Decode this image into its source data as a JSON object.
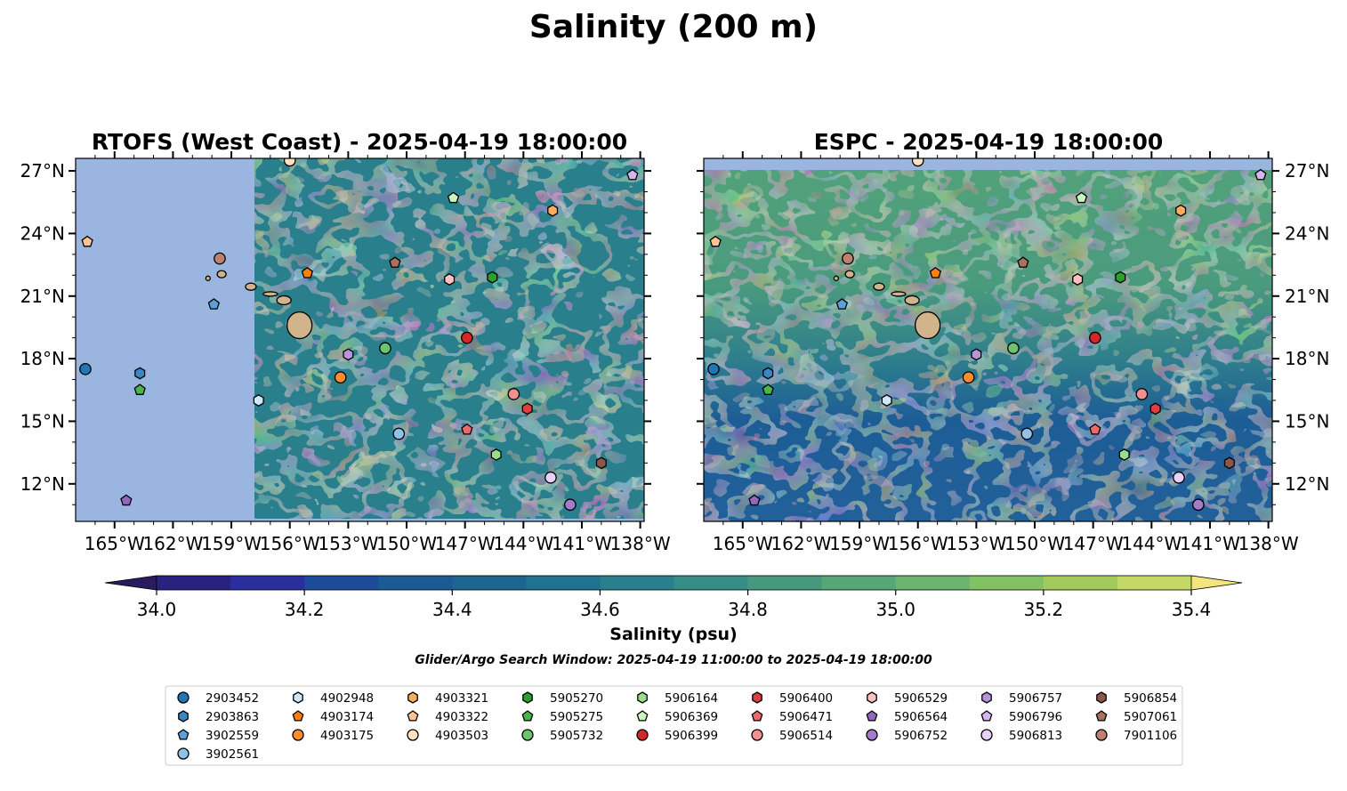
{
  "figure": {
    "suptitle": "Salinity (200 m)",
    "search_window": "Glider/Argo Search Window: 2025-04-19 11:00:00 to 2025-04-19 18:00:00"
  },
  "colors": {
    "land": "#d2b48c",
    "nodata": "#9ab5e0",
    "background": "#ffffff"
  },
  "chart_data": [
    {
      "type": "heatmap",
      "title": "RTOFS (West Coast) - 2025-04-19 18:00:00",
      "xlim": [
        -167.0,
        -137.8
      ],
      "ylim": [
        10.2,
        27.6
      ],
      "xticks": [
        "165°W",
        "162°W",
        "159°W",
        "156°W",
        "153°W",
        "150°W",
        "147°W",
        "144°W",
        "141°W",
        "138°W"
      ],
      "yticks": [
        "27°N",
        "24°N",
        "21°N",
        "18°N",
        "15°N",
        "12°N"
      ],
      "model_domain_west_lon": -157.8,
      "model_domain_south_lat": 10.3,
      "field_note": "mostly 34.5-34.9 psu with fresher eddies (~34.4) east of 153°W"
    },
    {
      "type": "heatmap",
      "title": "ESPC - 2025-04-19 18:00:00",
      "xlim": [
        -167.0,
        -137.8
      ],
      "ylim": [
        10.2,
        27.6
      ],
      "xticks": [
        "165°W",
        "162°W",
        "159°W",
        "156°W",
        "153°W",
        "150°W",
        "147°W",
        "144°W",
        "141°W",
        "138°W"
      ],
      "yticks": [
        "27°N",
        "24°N",
        "21°N",
        "18°N",
        "15°N",
        "12°N"
      ],
      "model_domain_north_lat": 27.0,
      "field_note": "saltier band (~34.9-35.1 psu) north of 18°N, fresher (~34.3-34.5 psu) south of 16°N"
    }
  ],
  "colorbar": {
    "label": "Salinity (psu)",
    "min": 34.0,
    "max": 35.4,
    "step": 0.1,
    "extend": "both",
    "ticks": [
      "34.0",
      "34.2",
      "34.4",
      "34.6",
      "34.8",
      "35.0",
      "35.2",
      "35.4"
    ],
    "under_color": "#2a1a5e",
    "over_color": "#f4e47e",
    "colors": [
      "#2a2280",
      "#2b2f9e",
      "#1e4a9a",
      "#1b5a95",
      "#1a6690",
      "#1f7290",
      "#2a7f8c",
      "#368c86",
      "#46997f",
      "#57a677",
      "#6ab46e",
      "#84c064",
      "#a2cb5c",
      "#c4d965"
    ]
  },
  "floats": [
    {
      "id": "2903452",
      "marker": "circle",
      "color": "#1f77b4",
      "lon": -166.5,
      "lat": 17.5
    },
    {
      "id": "2903863",
      "marker": "hexagon",
      "color": "#3b87c4",
      "lon": -163.7,
      "lat": 17.3
    },
    {
      "id": "3902559",
      "marker": "pentagon",
      "color": "#5ba0d8",
      "lon": -159.9,
      "lat": 20.6
    },
    {
      "id": "3902561",
      "marker": "circle",
      "color": "#8fc2e8",
      "lon": -150.4,
      "lat": 14.4
    },
    {
      "id": "4902948",
      "marker": "hexagon",
      "color": "#cfe8f7",
      "lon": -157.6,
      "lat": 16.0
    },
    {
      "id": "4903174",
      "marker": "pentagon",
      "color": "#ff7f0e",
      "lon": -155.1,
      "lat": 22.1
    },
    {
      "id": "4903175",
      "marker": "circle",
      "color": "#ff8c2a",
      "lon": -153.4,
      "lat": 17.1
    },
    {
      "id": "4903321",
      "marker": "hexagon",
      "color": "#ffad5c",
      "lon": -142.5,
      "lat": 25.1
    },
    {
      "id": "4903322",
      "marker": "pentagon",
      "color": "#ffc48f",
      "lon": -166.4,
      "lat": 23.6
    },
    {
      "id": "4903503",
      "marker": "circle",
      "color": "#ffe0c0",
      "lon": -156.0,
      "lat": 27.5
    },
    {
      "id": "5905270",
      "marker": "hexagon",
      "color": "#2ca02c",
      "lon": -145.6,
      "lat": 21.9
    },
    {
      "id": "5905275",
      "marker": "pentagon",
      "color": "#48b648",
      "lon": -163.7,
      "lat": 16.5
    },
    {
      "id": "5905732",
      "marker": "circle",
      "color": "#6cc46c",
      "lon": -151.1,
      "lat": 18.5
    },
    {
      "id": "5906164",
      "marker": "hexagon",
      "color": "#98df8a",
      "lon": -145.4,
      "lat": 13.4
    },
    {
      "id": "5906369",
      "marker": "pentagon",
      "color": "#c8f5c0",
      "lon": -147.6,
      "lat": 25.7
    },
    {
      "id": "5906399",
      "marker": "circle",
      "color": "#d62728",
      "lon": -146.9,
      "lat": 19.0
    },
    {
      "id": "5906400",
      "marker": "hexagon",
      "color": "#e03e3e",
      "lon": -143.8,
      "lat": 15.6
    },
    {
      "id": "5906471",
      "marker": "pentagon",
      "color": "#ea6a6a",
      "lon": -146.9,
      "lat": 14.6
    },
    {
      "id": "5906514",
      "marker": "circle",
      "color": "#f29090",
      "lon": -144.5,
      "lat": 16.3
    },
    {
      "id": "5906529",
      "marker": "hexagon",
      "color": "#ffc0c0",
      "lon": -147.8,
      "lat": 21.8
    },
    {
      "id": "5906564",
      "marker": "pentagon",
      "color": "#9467bd",
      "lon": -164.4,
      "lat": 11.2
    },
    {
      "id": "5906752",
      "marker": "circle",
      "color": "#a27ccb",
      "lon": -141.6,
      "lat": 11.0
    },
    {
      "id": "5906757",
      "marker": "hexagon",
      "color": "#b894d8",
      "lon": -153.0,
      "lat": 18.2
    },
    {
      "id": "5906796",
      "marker": "pentagon",
      "color": "#d4b6f0",
      "lon": -138.4,
      "lat": 26.8
    },
    {
      "id": "5906813",
      "marker": "circle",
      "color": "#e6d2f8",
      "lon": -142.6,
      "lat": 12.3
    },
    {
      "id": "5906854",
      "marker": "hexagon",
      "color": "#8c564b",
      "lon": -140.0,
      "lat": 13.0
    },
    {
      "id": "5907061",
      "marker": "pentagon",
      "color": "#a8725f",
      "lon": -150.6,
      "lat": 22.6
    },
    {
      "id": "7901106",
      "marker": "circle",
      "color": "#c08070",
      "lon": -159.6,
      "lat": 22.8
    }
  ]
}
